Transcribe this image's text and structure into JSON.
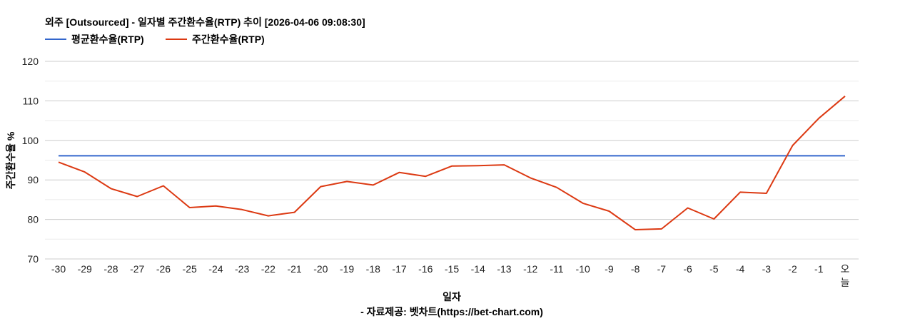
{
  "chart_data": {
    "type": "line",
    "title": "외주 [Outsourced] - 일자별 주간환수율(RTP) 추이 [2026-04-06 09:08:30]",
    "xlabel": "일자",
    "ylabel": "주간환수율 %",
    "source": "- 자료제공: 벳차트(https://bet-chart.com)",
    "ylim": [
      70,
      120
    ],
    "yticks": [
      70,
      80,
      90,
      100,
      110,
      120
    ],
    "minor_grid_step": 5,
    "grid": true,
    "legend_position": "top",
    "categories": [
      "-30",
      "-29",
      "-28",
      "-27",
      "-26",
      "-25",
      "-24",
      "-23",
      "-22",
      "-21",
      "-20",
      "-19",
      "-18",
      "-17",
      "-16",
      "-15",
      "-14",
      "-13",
      "-12",
      "-11",
      "-10",
      "-9",
      "-8",
      "-7",
      "-6",
      "-5",
      "-4",
      "-3",
      "-2",
      "-1",
      "오늘"
    ],
    "series": [
      {
        "name": "평균환수율(RTP)",
        "color": "#3366CC",
        "values": [
          96.1,
          96.1,
          96.1,
          96.1,
          96.1,
          96.1,
          96.1,
          96.1,
          96.1,
          96.1,
          96.1,
          96.1,
          96.1,
          96.1,
          96.1,
          96.1,
          96.1,
          96.1,
          96.1,
          96.1,
          96.1,
          96.1,
          96.1,
          96.1,
          96.1,
          96.1,
          96.1,
          96.1,
          96.1,
          96.1,
          96.1
        ]
      },
      {
        "name": "주간환수율(RTP)",
        "color": "#DC3912",
        "values": [
          94.5,
          92.0,
          87.8,
          85.8,
          88.5,
          83.0,
          83.4,
          82.5,
          80.9,
          81.8,
          88.3,
          89.6,
          88.7,
          91.9,
          90.9,
          93.5,
          93.6,
          93.8,
          90.5,
          88.1,
          84.1,
          82.1,
          77.4,
          77.6,
          82.9,
          80.1,
          86.9,
          86.6,
          98.7,
          105.6,
          111.2
        ]
      }
    ]
  }
}
